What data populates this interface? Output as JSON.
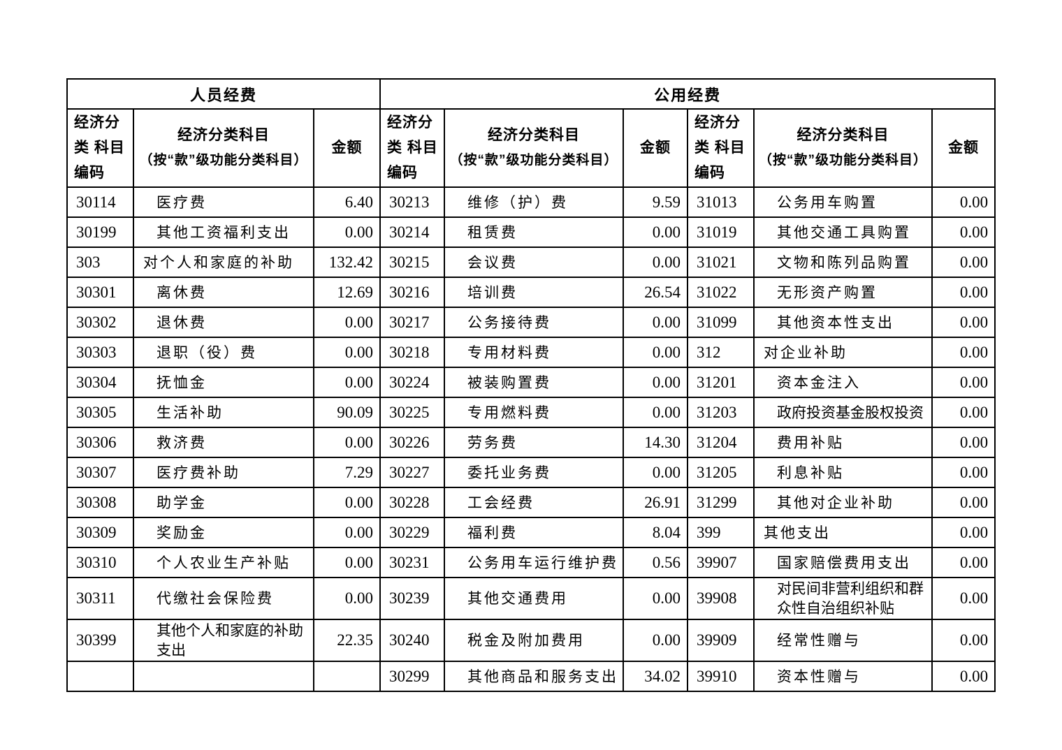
{
  "colors": {
    "background": "#ffffff",
    "text": "#000000",
    "border": "#000000"
  },
  "table": {
    "group_headers": [
      {
        "label": "人员经费"
      },
      {
        "label": "公用经费"
      }
    ],
    "column_header": {
      "code_line1": "经济分类",
      "code_line2": "科目编码",
      "subject_line1": "经济分类科目",
      "subject_line2": "（按“款”级功能分类科目）",
      "amount": "金额"
    },
    "parent_codes": [
      "303",
      "312",
      "399"
    ],
    "rows": [
      [
        [
          "30114",
          "医疗费",
          "6.40"
        ],
        [
          "30213",
          "维修（护）费",
          "9.59"
        ],
        [
          "31013",
          "公务用车购置",
          "0.00"
        ]
      ],
      [
        [
          "30199",
          "其他工资福利支出",
          "0.00"
        ],
        [
          "30214",
          "租赁费",
          "0.00"
        ],
        [
          "31019",
          "其他交通工具购置",
          "0.00"
        ]
      ],
      [
        [
          "303",
          "对个人和家庭的补助",
          "132.42"
        ],
        [
          "30215",
          "会议费",
          "0.00"
        ],
        [
          "31021",
          "文物和陈列品购置",
          "0.00"
        ]
      ],
      [
        [
          "30301",
          "离休费",
          "12.69"
        ],
        [
          "30216",
          "培训费",
          "26.54"
        ],
        [
          "31022",
          "无形资产购置",
          "0.00"
        ]
      ],
      [
        [
          "30302",
          "退休费",
          "0.00"
        ],
        [
          "30217",
          "公务接待费",
          "0.00"
        ],
        [
          "31099",
          "其他资本性支出",
          "0.00"
        ]
      ],
      [
        [
          "30303",
          "退职（役）费",
          "0.00"
        ],
        [
          "30218",
          "专用材料费",
          "0.00"
        ],
        [
          "312",
          "对企业补助",
          "0.00"
        ]
      ],
      [
        [
          "30304",
          "抚恤金",
          "0.00"
        ],
        [
          "30224",
          "被装购置费",
          "0.00"
        ],
        [
          "31201",
          "资本金注入",
          "0.00"
        ]
      ],
      [
        [
          "30305",
          "生活补助",
          "90.09"
        ],
        [
          "30225",
          "专用燃料费",
          "0.00"
        ],
        [
          "31203",
          "政府投资基金股权投资",
          "0.00"
        ]
      ],
      [
        [
          "30306",
          "救济费",
          "0.00"
        ],
        [
          "30226",
          "劳务费",
          "14.30"
        ],
        [
          "31204",
          "费用补贴",
          "0.00"
        ]
      ],
      [
        [
          "30307",
          "医疗费补助",
          "7.29"
        ],
        [
          "30227",
          "委托业务费",
          "0.00"
        ],
        [
          "31205",
          "利息补贴",
          "0.00"
        ]
      ],
      [
        [
          "30308",
          "助学金",
          "0.00"
        ],
        [
          "30228",
          "工会经费",
          "26.91"
        ],
        [
          "31299",
          "其他对企业补助",
          "0.00"
        ]
      ],
      [
        [
          "30309",
          "奖励金",
          "0.00"
        ],
        [
          "30229",
          "福利费",
          "8.04"
        ],
        [
          "399",
          "其他支出",
          "0.00"
        ]
      ],
      [
        [
          "30310",
          "个人农业生产补贴",
          "0.00"
        ],
        [
          "30231",
          "公务用车运行维护费",
          "0.56"
        ],
        [
          "39907",
          "国家赔偿费用支出",
          "0.00"
        ]
      ],
      [
        [
          "30311",
          "代缴社会保险费",
          "0.00"
        ],
        [
          "30239",
          "其他交通费用",
          "0.00"
        ],
        [
          "39908",
          "对民间非营利组织和群众性自治组织补贴",
          "0.00"
        ]
      ],
      [
        [
          "30399",
          "其他个人和家庭的补助支出",
          "22.35"
        ],
        [
          "30240",
          "税金及附加费用",
          "0.00"
        ],
        [
          "39909",
          "经常性赠与",
          "0.00"
        ]
      ],
      [
        [
          "",
          "",
          ""
        ],
        [
          "30299",
          "其他商品和服务支出",
          "34.02"
        ],
        [
          "39910",
          "资本性赠与",
          "0.00"
        ]
      ]
    ]
  }
}
